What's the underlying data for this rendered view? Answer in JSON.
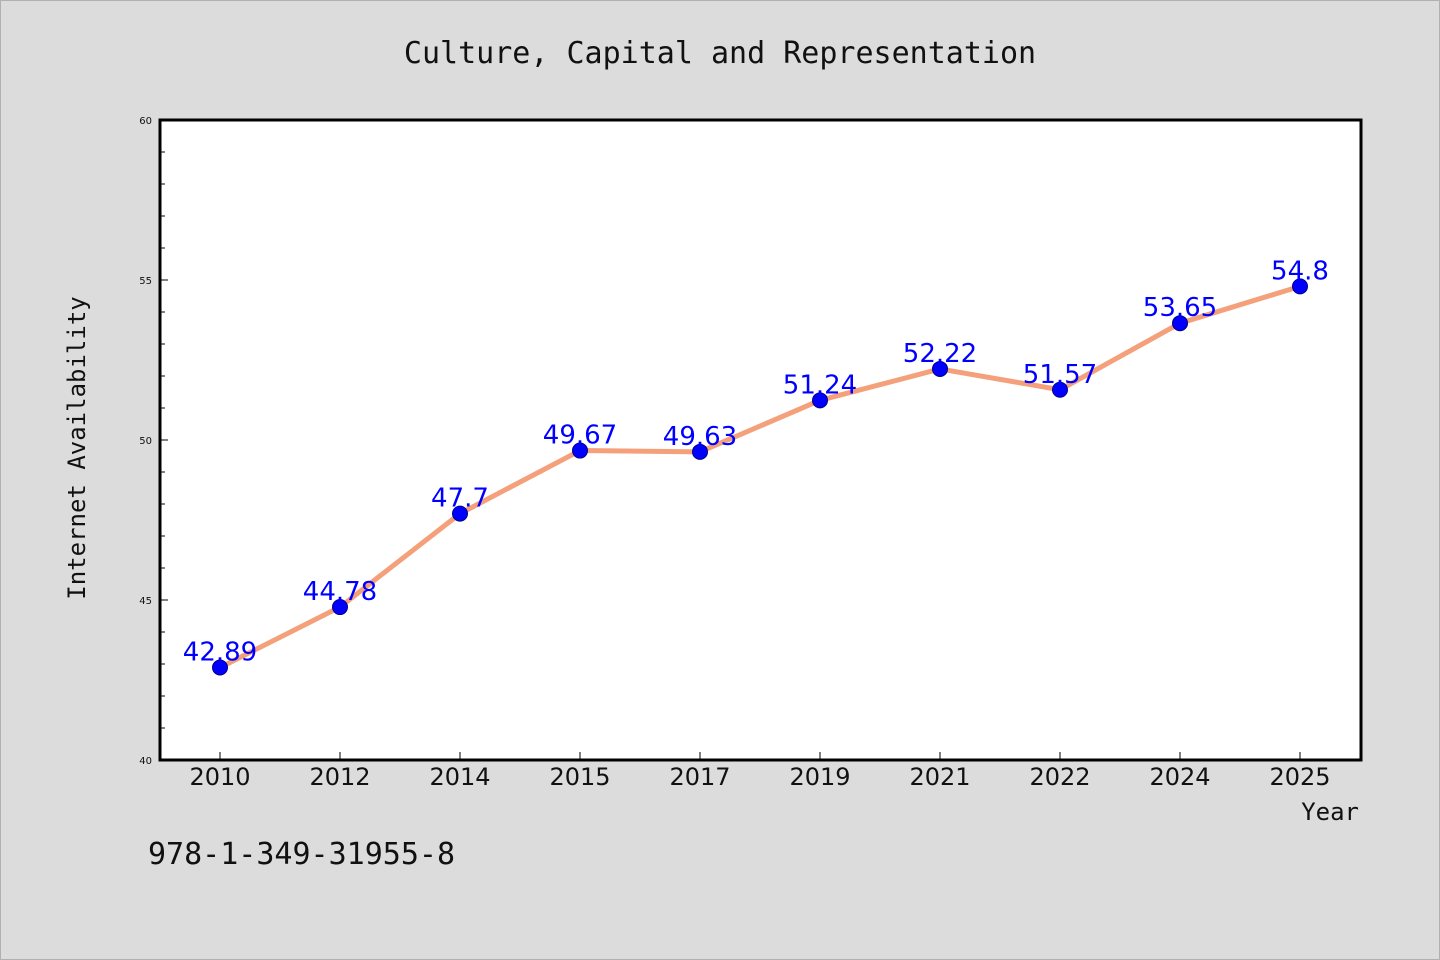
{
  "chart_data": {
    "type": "line",
    "title": "Culture, Capital and Representation",
    "xlabel": "Year",
    "ylabel": "Internet Availability",
    "categories": [
      "2010",
      "2012",
      "2014",
      "2015",
      "2017",
      "2019",
      "2021",
      "2022",
      "2024",
      "2025"
    ],
    "series": [
      {
        "values": [
          42.89,
          44.78,
          47.7,
          49.67,
          49.63,
          51.24,
          52.22,
          51.57,
          53.65,
          54.8
        ],
        "data_labels": [
          "42.89",
          "44.78",
          "47.7",
          "49.67",
          "49.63",
          "51.24",
          "52.22",
          "51.57",
          "53.65",
          "54.8"
        ]
      }
    ],
    "ylim": [
      40,
      60
    ],
    "yticks": [
      40,
      45,
      50,
      55,
      60
    ],
    "grid": false,
    "colors": {
      "line": "#f4a07a",
      "marker": "#0000ff",
      "data_label": "#0000ff",
      "plot_background": "#ffffff",
      "figure_background": "#dcdcdc"
    }
  },
  "footnote": "978-1-349-31955-8"
}
